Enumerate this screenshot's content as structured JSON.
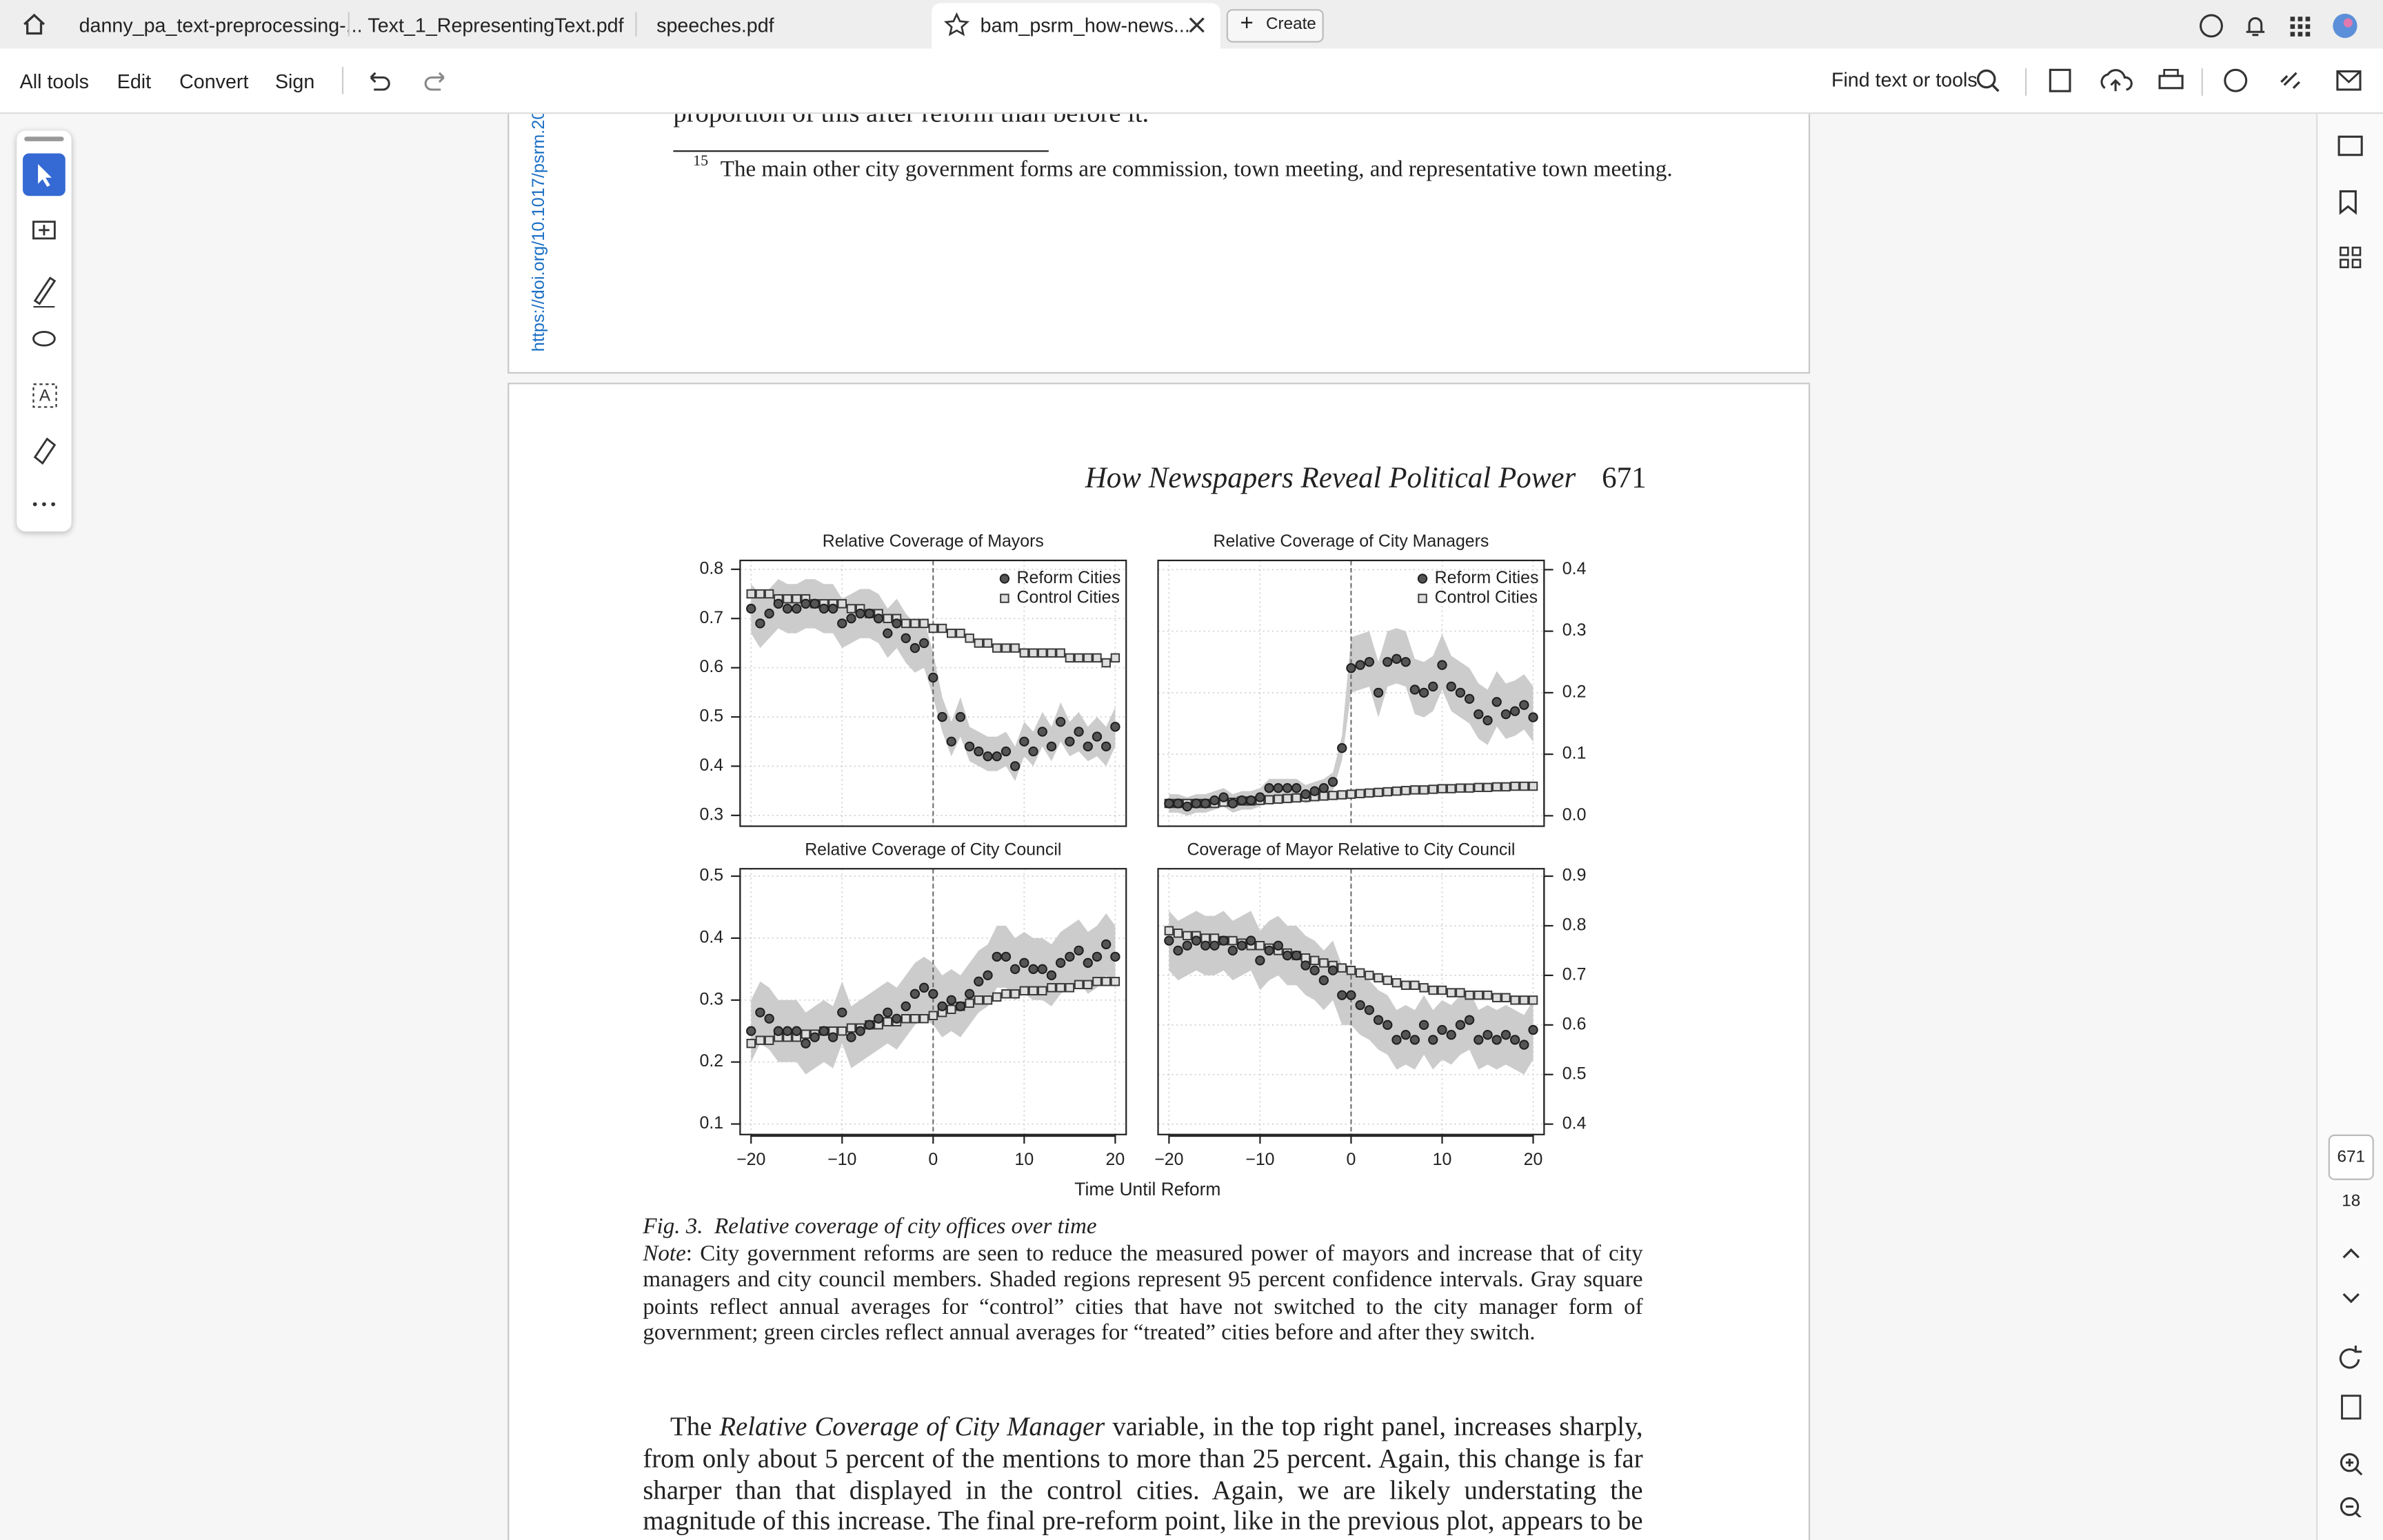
{
  "tabs": [
    "danny_pa_text-preprocessing-...",
    "Text_1_RepresentingText.pdf",
    "speeches.pdf",
    "bam_psrm_how-news..."
  ],
  "create_button": "Create",
  "toolbar": {
    "menu": [
      "All tools",
      "Edit",
      "Convert",
      "Sign"
    ],
    "search": "Find text or tools"
  },
  "document": {
    "top_fragment": "proportion of this after reform than before it.",
    "footnote_number": "15",
    "footnote": "The main other city government forms are commission, town meeting, and representative town meeting.",
    "doi_link": "https://doi.org/10.1017/psrm.20",
    "running_head": "How Newspapers Reveal Political Power",
    "page_number": "671",
    "x_label": "Time Until Reform",
    "figure_caption": "Fig. 3.  Relative coverage of city offices over time",
    "note_label": "Note",
    "note_text": ": City government reforms are seen to reduce the measured power of mayors and increase that of city managers and city council members. Shaded regions represent 95 percent confidence intervals. Gray square points reflect annual averages for “control” cities that have not switched to the city manager form of government; green circles reflect annual averages for “treated” cities before and after they switch.",
    "body": [
      "The ",
      "Relative Coverage of City Manager",
      " variable, in the top right panel, increases sharply, from only about 5 percent of the mentions to more than 25 percent. Again, this change is far sharper than that displayed in the control cities. Again, we are likely understating the magnitude of this increase. The final pre-reform point, like in the previous plot, appears to be anticipating"
    ]
  },
  "page_indicator": {
    "current": "671",
    "total": "18"
  },
  "chart_data": [
    {
      "type": "scatter",
      "title": "Relative Coverage of Mayors",
      "legend": "upper right",
      "yaxis_side": "left",
      "xtick_labels": false,
      "grid": true,
      "vline": 0,
      "xlim": [
        -21.2,
        21.2
      ],
      "ylim": [
        0.278,
        0.818
      ],
      "xticks": [
        {
          "value": -20,
          "label": "−20"
        },
        {
          "value": -10,
          "label": "−10"
        },
        0,
        10,
        20
      ],
      "yticks": [
        0.3,
        0.4,
        0.5,
        0.6,
        0.7,
        0.8
      ],
      "x": [
        -20,
        -19,
        -18,
        -17,
        -16,
        -15,
        -14,
        -13,
        -12,
        -11,
        -10,
        -9,
        -8,
        -7,
        -6,
        -5,
        -4,
        -3,
        -2,
        -1,
        0,
        1,
        2,
        3,
        4,
        5,
        6,
        7,
        8,
        9,
        10,
        11,
        12,
        13,
        14,
        15,
        16,
        17,
        18,
        19,
        20
      ],
      "series": [
        {
          "name": "Reform Cities",
          "marker": "circle",
          "color": "#555555",
          "band_color": "#cccccc",
          "values": [
            0.72,
            0.69,
            0.71,
            0.73,
            0.72,
            0.72,
            0.73,
            0.73,
            0.72,
            0.72,
            0.69,
            0.7,
            0.71,
            0.71,
            0.7,
            0.67,
            0.69,
            0.66,
            0.64,
            0.65,
            0.58,
            0.5,
            0.45,
            0.5,
            0.44,
            0.43,
            0.42,
            0.42,
            0.43,
            0.4,
            0.45,
            0.43,
            0.47,
            0.44,
            0.49,
            0.45,
            0.47,
            0.44,
            0.46,
            0.44,
            0.48
          ],
          "ci_lower": [
            0.67,
            0.64,
            0.66,
            0.68,
            0.67,
            0.67,
            0.68,
            0.68,
            0.67,
            0.67,
            0.64,
            0.65,
            0.66,
            0.66,
            0.65,
            0.62,
            0.64,
            0.61,
            0.59,
            0.6,
            0.54,
            0.47,
            0.42,
            0.46,
            0.41,
            0.4,
            0.39,
            0.39,
            0.4,
            0.37,
            0.42,
            0.4,
            0.44,
            0.41,
            0.45,
            0.42,
            0.43,
            0.41,
            0.42,
            0.4,
            0.44
          ],
          "ci_upper": [
            0.77,
            0.75,
            0.76,
            0.78,
            0.77,
            0.77,
            0.78,
            0.78,
            0.77,
            0.77,
            0.74,
            0.75,
            0.76,
            0.76,
            0.75,
            0.72,
            0.74,
            0.71,
            0.69,
            0.7,
            0.63,
            0.54,
            0.49,
            0.54,
            0.48,
            0.47,
            0.46,
            0.46,
            0.47,
            0.44,
            0.49,
            0.47,
            0.51,
            0.48,
            0.53,
            0.49,
            0.51,
            0.48,
            0.5,
            0.48,
            0.52
          ]
        },
        {
          "name": "Control Cities",
          "marker": "square",
          "color": "#dddddd",
          "values": [
            0.75,
            0.75,
            0.75,
            0.74,
            0.74,
            0.74,
            0.74,
            0.73,
            0.73,
            0.73,
            0.73,
            0.72,
            0.72,
            0.71,
            0.71,
            0.7,
            0.7,
            0.69,
            0.69,
            0.69,
            0.68,
            0.68,
            0.67,
            0.67,
            0.66,
            0.65,
            0.65,
            0.64,
            0.64,
            0.64,
            0.63,
            0.63,
            0.63,
            0.63,
            0.63,
            0.62,
            0.62,
            0.62,
            0.62,
            0.61,
            0.62
          ]
        }
      ]
    },
    {
      "type": "scatter",
      "title": "Relative Coverage of City Managers",
      "legend": "upper right",
      "yaxis_side": "right",
      "xtick_labels": false,
      "grid": true,
      "vline": 0,
      "xlim": [
        -21.2,
        21.2
      ],
      "ylim": [
        -0.017,
        0.415
      ],
      "xticks": [
        {
          "value": -20,
          "label": "−20"
        },
        {
          "value": -10,
          "label": "−10"
        },
        0,
        10,
        20
      ],
      "yticks": [
        {
          "value": 0,
          "label": "0.0"
        },
        0.1,
        0.2,
        0.3,
        0.4
      ],
      "x": [
        -20,
        -19,
        -18,
        -17,
        -16,
        -15,
        -14,
        -13,
        -12,
        -11,
        -10,
        -9,
        -8,
        -7,
        -6,
        -5,
        -4,
        -3,
        -2,
        -1,
        0,
        1,
        2,
        3,
        4,
        5,
        6,
        7,
        8,
        9,
        10,
        11,
        12,
        13,
        14,
        15,
        16,
        17,
        18,
        19,
        20
      ],
      "series": [
        {
          "name": "Reform Cities",
          "marker": "circle",
          "color": "#555555",
          "band_color": "#cccccc",
          "values": [
            0.02,
            0.02,
            0.015,
            0.02,
            0.02,
            0.025,
            0.03,
            0.02,
            0.025,
            0.025,
            0.03,
            0.045,
            0.045,
            0.045,
            0.045,
            0.035,
            0.04,
            0.045,
            0.055,
            0.11,
            0.24,
            0.245,
            0.25,
            0.2,
            0.25,
            0.255,
            0.25,
            0.205,
            0.2,
            0.21,
            0.245,
            0.21,
            0.2,
            0.19,
            0.165,
            0.155,
            0.185,
            0.165,
            0.17,
            0.18,
            0.16
          ],
          "ci_lower": [
            0.005,
            0.005,
            0.0,
            0.005,
            0.005,
            0.01,
            0.015,
            0.005,
            0.01,
            0.01,
            0.015,
            0.03,
            0.03,
            0.03,
            0.03,
            0.02,
            0.025,
            0.03,
            0.04,
            0.09,
            0.2,
            0.205,
            0.21,
            0.16,
            0.21,
            0.215,
            0.21,
            0.165,
            0.16,
            0.17,
            0.205,
            0.17,
            0.16,
            0.15,
            0.125,
            0.115,
            0.145,
            0.125,
            0.13,
            0.14,
            0.12
          ],
          "ci_upper": [
            0.035,
            0.035,
            0.03,
            0.035,
            0.035,
            0.04,
            0.045,
            0.035,
            0.04,
            0.04,
            0.045,
            0.06,
            0.06,
            0.06,
            0.06,
            0.05,
            0.055,
            0.06,
            0.07,
            0.13,
            0.29,
            0.295,
            0.3,
            0.25,
            0.3,
            0.305,
            0.3,
            0.255,
            0.25,
            0.26,
            0.295,
            0.26,
            0.25,
            0.24,
            0.215,
            0.205,
            0.235,
            0.215,
            0.22,
            0.23,
            0.21
          ]
        },
        {
          "name": "Control Cities",
          "marker": "square",
          "color": "#dddddd",
          "values": [
            0.02,
            0.02,
            0.02,
            0.02,
            0.02,
            0.02,
            0.022,
            0.022,
            0.024,
            0.024,
            0.025,
            0.026,
            0.027,
            0.028,
            0.029,
            0.03,
            0.031,
            0.032,
            0.033,
            0.034,
            0.035,
            0.036,
            0.037,
            0.038,
            0.039,
            0.04,
            0.041,
            0.042,
            0.042,
            0.043,
            0.044,
            0.044,
            0.045,
            0.045,
            0.046,
            0.046,
            0.047,
            0.047,
            0.048,
            0.048,
            0.048
          ]
        }
      ]
    },
    {
      "type": "scatter",
      "title": "Relative Coverage of City Council",
      "yaxis_side": "left",
      "xtick_labels": true,
      "grid": true,
      "vline": 0,
      "xlim": [
        -21.2,
        21.2
      ],
      "ylim": [
        0.083,
        0.512
      ],
      "xticks": [
        {
          "value": -20,
          "label": "−20"
        },
        {
          "value": -10,
          "label": "−10"
        },
        0,
        10,
        20
      ],
      "yticks": [
        0.1,
        0.2,
        0.3,
        0.4,
        0.5
      ],
      "x": [
        -20,
        -19,
        -18,
        -17,
        -16,
        -15,
        -14,
        -13,
        -12,
        -11,
        -10,
        -9,
        -8,
        -7,
        -6,
        -5,
        -4,
        -3,
        -2,
        -1,
        0,
        1,
        2,
        3,
        4,
        5,
        6,
        7,
        8,
        9,
        10,
        11,
        12,
        13,
        14,
        15,
        16,
        17,
        18,
        19,
        20
      ],
      "series": [
        {
          "marker": "circle",
          "color": "#555555",
          "band_color": "#cccccc",
          "values": [
            0.25,
            0.28,
            0.27,
            0.25,
            0.25,
            0.25,
            0.23,
            0.24,
            0.25,
            0.24,
            0.28,
            0.24,
            0.25,
            0.26,
            0.27,
            0.28,
            0.27,
            0.29,
            0.31,
            0.32,
            0.31,
            0.29,
            0.3,
            0.29,
            0.31,
            0.33,
            0.34,
            0.37,
            0.37,
            0.35,
            0.36,
            0.35,
            0.35,
            0.34,
            0.36,
            0.37,
            0.38,
            0.36,
            0.37,
            0.39,
            0.37
          ],
          "ci_lower": [
            0.2,
            0.23,
            0.22,
            0.2,
            0.2,
            0.2,
            0.18,
            0.19,
            0.2,
            0.19,
            0.23,
            0.19,
            0.2,
            0.21,
            0.22,
            0.23,
            0.22,
            0.24,
            0.26,
            0.27,
            0.26,
            0.24,
            0.25,
            0.24,
            0.26,
            0.28,
            0.29,
            0.32,
            0.32,
            0.3,
            0.31,
            0.3,
            0.3,
            0.29,
            0.31,
            0.32,
            0.33,
            0.31,
            0.32,
            0.34,
            0.32
          ],
          "ci_upper": [
            0.3,
            0.33,
            0.32,
            0.3,
            0.3,
            0.3,
            0.28,
            0.29,
            0.3,
            0.29,
            0.33,
            0.29,
            0.3,
            0.31,
            0.32,
            0.33,
            0.32,
            0.34,
            0.36,
            0.37,
            0.36,
            0.34,
            0.35,
            0.34,
            0.36,
            0.38,
            0.39,
            0.42,
            0.42,
            0.4,
            0.41,
            0.4,
            0.4,
            0.39,
            0.41,
            0.42,
            0.43,
            0.41,
            0.42,
            0.44,
            0.42
          ]
        },
        {
          "marker": "square",
          "color": "#dddddd",
          "values": [
            0.23,
            0.235,
            0.235,
            0.24,
            0.24,
            0.24,
            0.245,
            0.245,
            0.25,
            0.25,
            0.25,
            0.255,
            0.255,
            0.26,
            0.26,
            0.265,
            0.265,
            0.27,
            0.27,
            0.27,
            0.275,
            0.28,
            0.285,
            0.29,
            0.295,
            0.3,
            0.3,
            0.305,
            0.31,
            0.31,
            0.315,
            0.315,
            0.315,
            0.32,
            0.32,
            0.32,
            0.325,
            0.325,
            0.33,
            0.33,
            0.33
          ]
        }
      ]
    },
    {
      "type": "scatter",
      "title": "Coverage of Mayor Relative to City Council",
      "yaxis_side": "right",
      "xtick_labels": true,
      "grid": true,
      "vline": 0,
      "xlim": [
        -21.2,
        21.2
      ],
      "ylim": [
        0.379,
        0.915
      ],
      "xticks": [
        {
          "value": -20,
          "label": "−20"
        },
        {
          "value": -10,
          "label": "−10"
        },
        0,
        10,
        20
      ],
      "yticks": [
        0.4,
        0.5,
        0.6,
        0.7,
        0.8,
        0.9
      ],
      "x": [
        -20,
        -19,
        -18,
        -17,
        -16,
        -15,
        -14,
        -13,
        -12,
        -11,
        -10,
        -9,
        -8,
        -7,
        -6,
        -5,
        -4,
        -3,
        -2,
        -1,
        0,
        1,
        2,
        3,
        4,
        5,
        6,
        7,
        8,
        9,
        10,
        11,
        12,
        13,
        14,
        15,
        16,
        17,
        18,
        19,
        20
      ],
      "series": [
        {
          "marker": "circle",
          "color": "#555555",
          "band_color": "#cccccc",
          "values": [
            0.77,
            0.75,
            0.76,
            0.77,
            0.76,
            0.76,
            0.77,
            0.75,
            0.76,
            0.77,
            0.73,
            0.75,
            0.76,
            0.74,
            0.74,
            0.72,
            0.71,
            0.69,
            0.71,
            0.66,
            0.66,
            0.64,
            0.63,
            0.61,
            0.6,
            0.57,
            0.58,
            0.57,
            0.6,
            0.57,
            0.59,
            0.58,
            0.6,
            0.61,
            0.57,
            0.58,
            0.57,
            0.58,
            0.57,
            0.56,
            0.59
          ],
          "ci_lower": [
            0.71,
            0.69,
            0.7,
            0.71,
            0.7,
            0.7,
            0.71,
            0.69,
            0.7,
            0.71,
            0.67,
            0.69,
            0.7,
            0.68,
            0.68,
            0.66,
            0.65,
            0.63,
            0.65,
            0.6,
            0.6,
            0.58,
            0.57,
            0.55,
            0.54,
            0.51,
            0.52,
            0.51,
            0.54,
            0.51,
            0.53,
            0.52,
            0.54,
            0.55,
            0.51,
            0.52,
            0.51,
            0.52,
            0.51,
            0.5,
            0.53
          ],
          "ci_upper": [
            0.83,
            0.81,
            0.82,
            0.83,
            0.82,
            0.82,
            0.83,
            0.81,
            0.82,
            0.83,
            0.79,
            0.81,
            0.82,
            0.8,
            0.8,
            0.78,
            0.77,
            0.75,
            0.77,
            0.72,
            0.72,
            0.7,
            0.69,
            0.67,
            0.66,
            0.63,
            0.64,
            0.63,
            0.66,
            0.63,
            0.65,
            0.64,
            0.66,
            0.67,
            0.63,
            0.64,
            0.63,
            0.64,
            0.63,
            0.62,
            0.65
          ]
        },
        {
          "marker": "square",
          "color": "#dddddd",
          "values": [
            0.79,
            0.785,
            0.78,
            0.78,
            0.775,
            0.775,
            0.77,
            0.77,
            0.765,
            0.76,
            0.76,
            0.755,
            0.75,
            0.745,
            0.74,
            0.735,
            0.73,
            0.725,
            0.72,
            0.715,
            0.71,
            0.705,
            0.7,
            0.695,
            0.69,
            0.685,
            0.68,
            0.68,
            0.675,
            0.67,
            0.67,
            0.665,
            0.665,
            0.66,
            0.66,
            0.66,
            0.655,
            0.655,
            0.65,
            0.65,
            0.65
          ]
        }
      ]
    }
  ]
}
